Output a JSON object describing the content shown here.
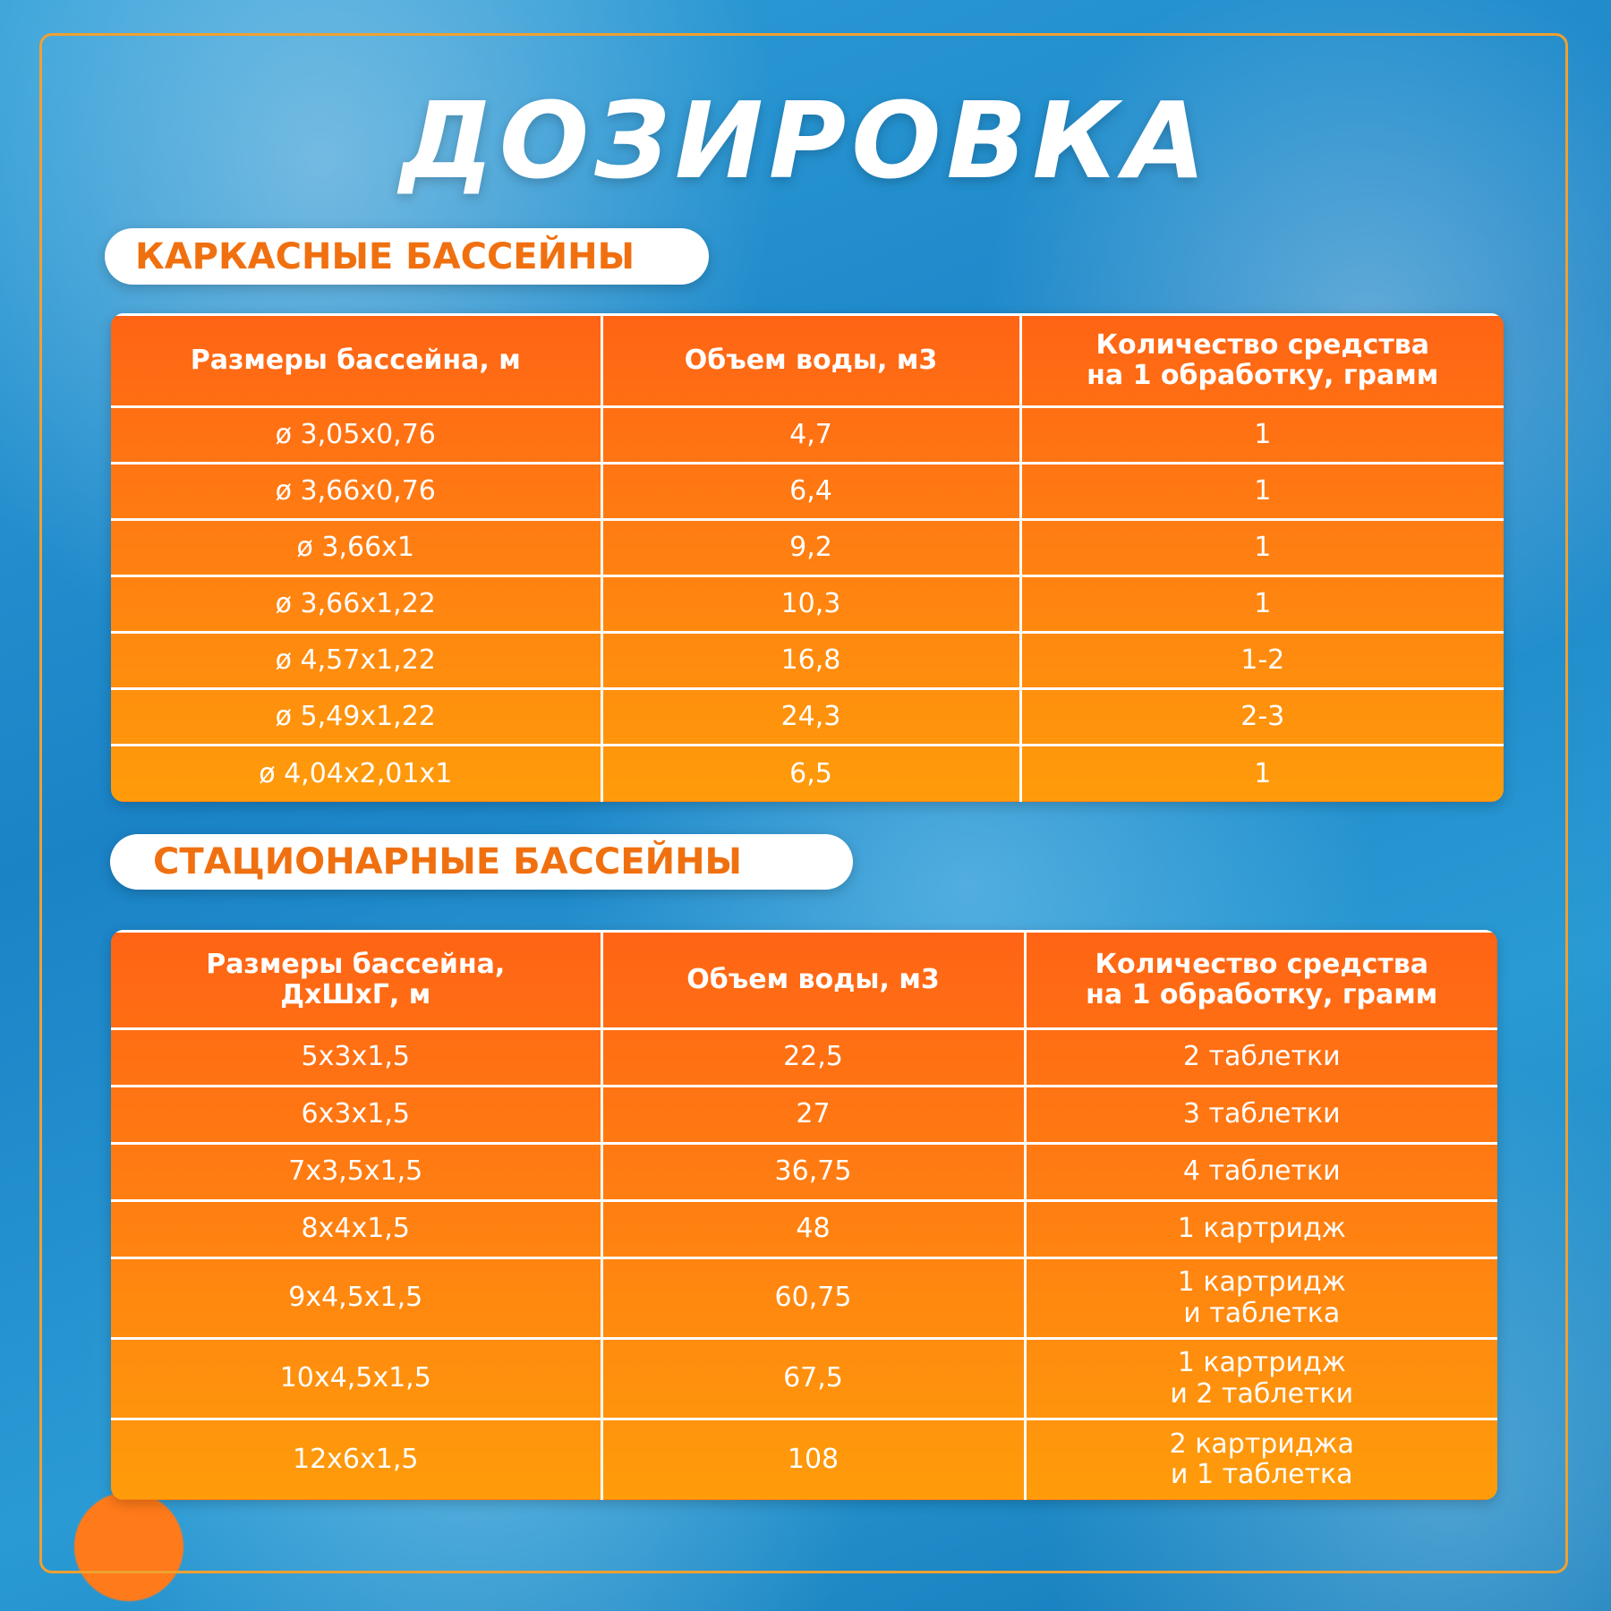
{
  "title": "ДОЗИРОВКА",
  "sections": [
    {
      "heading": "КАРКАСНЫЕ БАССЕЙНЫ",
      "table": {
        "header": [
          "Размеры бассейна, м",
          "Объем воды, м3",
          "Количество средства\nна 1 обработку, грамм"
        ],
        "rows": [
          [
            "ø 3,05x0,76",
            "4,7",
            "1"
          ],
          [
            "ø 3,66x0,76",
            "6,4",
            "1"
          ],
          [
            "ø 3,66x1",
            "9,2",
            "1"
          ],
          [
            "ø 3,66x1,22",
            "10,3",
            "1"
          ],
          [
            "ø 4,57x1,22",
            "16,8",
            "1-2"
          ],
          [
            "ø 5,49x1,22",
            "24,3",
            "2-3"
          ],
          [
            "ø 4,04x2,01x1",
            "6,5",
            "1"
          ]
        ]
      }
    },
    {
      "heading": "СТАЦИОНАРНЫЕ БАССЕЙНЫ",
      "table": {
        "header": [
          "Размеры бассейна,\nДхШхГ, м",
          "Объем воды, м3",
          "Количество средства\nна 1 обработку, грамм"
        ],
        "rows": [
          [
            "5x3x1,5",
            "22,5",
            "2 таблетки"
          ],
          [
            "6x3x1,5",
            "27",
            "3 таблетки"
          ],
          [
            "7x3,5x1,5",
            "36,75",
            "4 таблетки"
          ],
          [
            "8x4x1,5",
            "48",
            "1 картридж"
          ],
          [
            "9x4,5x1,5",
            "60,75",
            "1 картридж\nи таблетка"
          ],
          [
            "10x4,5x1,5",
            "67,5",
            "1 картридж\nи 2 таблетки"
          ],
          [
            "12x6x1,5",
            "108",
            "2 картриджа\nи 1 таблетка"
          ]
        ]
      }
    }
  ]
}
